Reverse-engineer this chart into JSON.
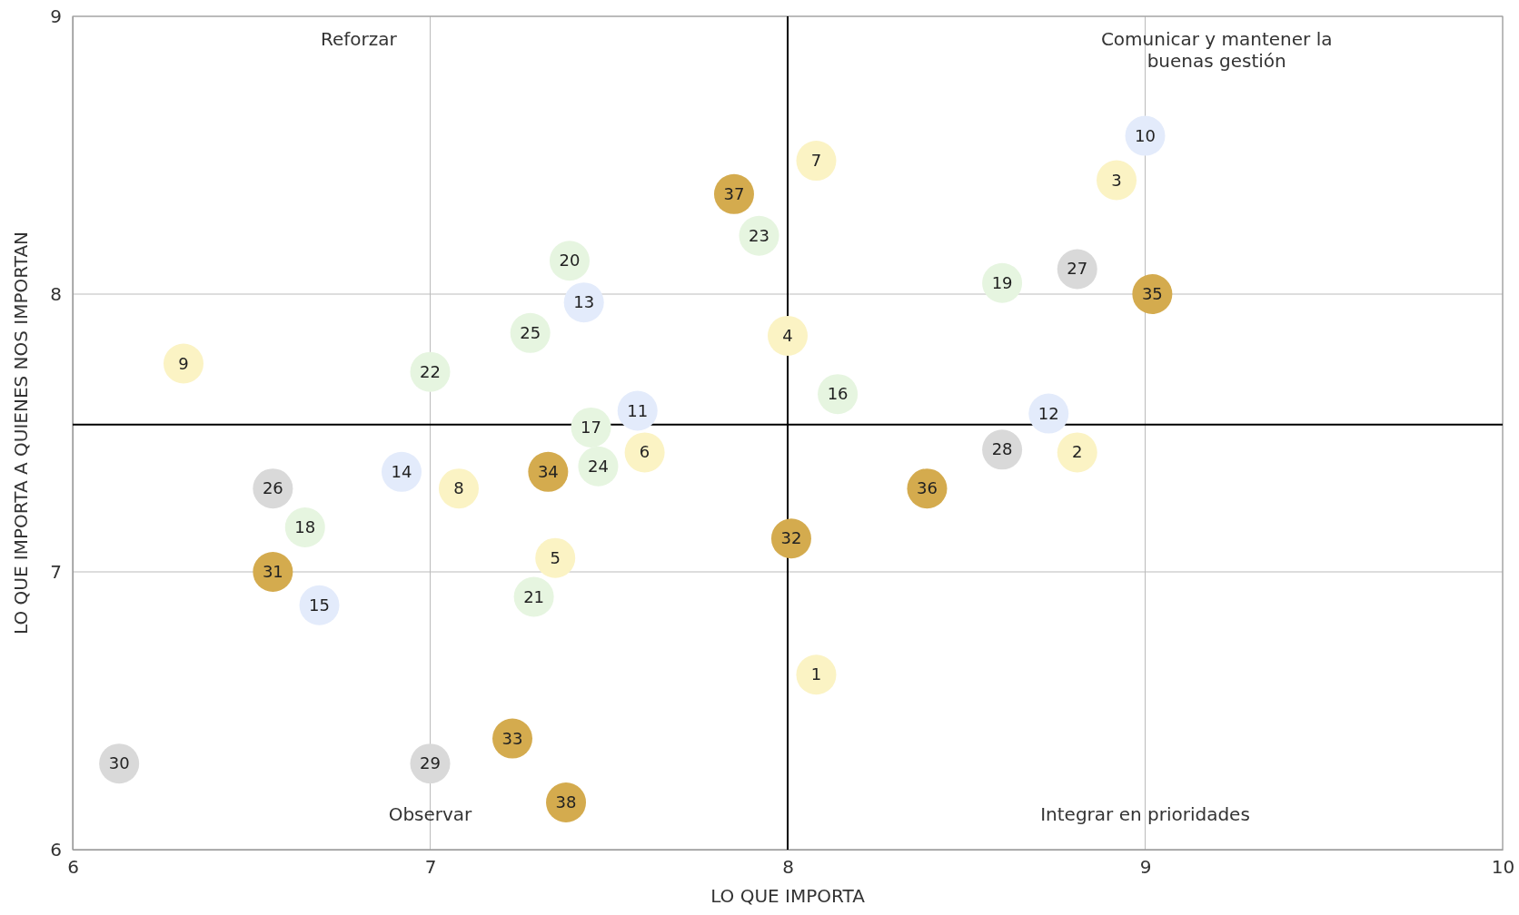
{
  "chart_data": {
    "type": "scatter",
    "xlabel": "LO QUE IMPORTA",
    "ylabel": "LO QUE IMPORTA A QUIENES NOS IMPORTAN",
    "xlim": [
      6,
      10
    ],
    "ylim": [
      6,
      9
    ],
    "xticks": [
      6,
      7,
      8,
      9,
      10
    ],
    "yticks": [
      6,
      7,
      8,
      9
    ],
    "grid": true,
    "marker": "circle",
    "ref_lines": [
      {
        "axis": "x",
        "value": 8,
        "color": "#000000"
      },
      {
        "axis": "y",
        "value": 7.53,
        "color": "#000000"
      }
    ],
    "annotations": [
      "Reforzar",
      "Comunicar y mantener la buenas gestión",
      "Observar",
      "Integrar en prioridades",
      {
        "text": "1",
        "x": 8.08,
        "y": 6.63
      },
      {
        "text": "2",
        "x": 8.81,
        "y": 7.43
      },
      {
        "text": "3",
        "x": 8.92,
        "y": 8.41
      },
      {
        "text": "4",
        "x": 8.0,
        "y": 7.85
      },
      {
        "text": "5",
        "x": 7.35,
        "y": 7.05
      },
      {
        "text": "6",
        "x": 7.6,
        "y": 7.43
      },
      {
        "text": "7",
        "x": 8.08,
        "y": 8.48
      },
      {
        "text": "8",
        "x": 7.08,
        "y": 7.3
      },
      {
        "text": "9",
        "x": 6.31,
        "y": 7.75
      },
      {
        "text": "10",
        "x": 9.0,
        "y": 8.57
      },
      {
        "text": "11",
        "x": 7.58,
        "y": 7.58
      },
      {
        "text": "12",
        "x": 8.73,
        "y": 7.57
      },
      {
        "text": "13",
        "x": 7.43,
        "y": 7.97
      },
      {
        "text": "14",
        "x": 6.92,
        "y": 7.36
      },
      {
        "text": "15",
        "x": 6.69,
        "y": 6.88
      },
      {
        "text": "16",
        "x": 8.14,
        "y": 7.64
      },
      {
        "text": "17",
        "x": 7.45,
        "y": 7.52
      },
      {
        "text": "18",
        "x": 6.65,
        "y": 7.16
      },
      {
        "text": "19",
        "x": 8.6,
        "y": 8.04
      },
      {
        "text": "20",
        "x": 7.39,
        "y": 8.12
      },
      {
        "text": "21",
        "x": 7.29,
        "y": 6.91
      },
      {
        "text": "22",
        "x": 7.0,
        "y": 7.72
      },
      {
        "text": "23",
        "x": 7.92,
        "y": 8.21
      },
      {
        "text": "24",
        "x": 7.47,
        "y": 7.38
      },
      {
        "text": "25",
        "x": 7.28,
        "y": 7.86
      },
      {
        "text": "26",
        "x": 6.56,
        "y": 7.3
      },
      {
        "text": "27",
        "x": 8.81,
        "y": 8.09
      },
      {
        "text": "28",
        "x": 8.6,
        "y": 7.44
      },
      {
        "text": "29",
        "x": 7.0,
        "y": 6.31
      },
      {
        "text": "30",
        "x": 6.13,
        "y": 6.31
      },
      {
        "text": "31",
        "x": 6.56,
        "y": 7.0
      },
      {
        "text": "32",
        "x": 8.01,
        "y": 7.12
      },
      {
        "text": "33",
        "x": 7.23,
        "y": 6.4
      },
      {
        "text": "34",
        "x": 7.33,
        "y": 7.36
      },
      {
        "text": "35",
        "x": 9.02,
        "y": 8.0
      },
      {
        "text": "36",
        "x": 8.39,
        "y": 7.3
      },
      {
        "text": "37",
        "x": 7.85,
        "y": 8.36
      },
      {
        "text": "38",
        "x": 7.38,
        "y": 6.17
      }
    ],
    "series": [
      {
        "color": "#fbf3c4",
        "x": [
          8.08,
          8.81,
          8.92,
          8.0,
          7.35,
          7.6,
          8.08,
          7.08,
          6.31
        ],
        "values": [
          6.63,
          7.43,
          8.41,
          7.85,
          7.05,
          7.43,
          8.48,
          7.3,
          7.75
        ]
      },
      {
        "color": "#e3ebfb",
        "x": [
          9.0,
          7.58,
          8.73,
          7.43,
          6.92,
          6.69
        ],
        "values": [
          8.57,
          7.58,
          7.57,
          7.97,
          7.36,
          6.88
        ]
      },
      {
        "color": "#e6f5e0",
        "x": [
          8.14,
          7.45,
          6.65,
          8.6,
          7.39,
          7.29,
          7.0,
          7.92,
          7.47,
          7.28
        ],
        "values": [
          7.64,
          7.52,
          7.16,
          8.04,
          8.12,
          6.91,
          7.72,
          8.21,
          7.38,
          7.86
        ]
      },
      {
        "color": "#d9d9d9",
        "x": [
          6.56,
          8.81,
          8.6,
          7.0,
          6.13
        ],
        "values": [
          7.3,
          8.09,
          7.44,
          6.31,
          6.31
        ]
      },
      {
        "color": "#d4ab4e",
        "x": [
          6.56,
          8.01,
          7.23,
          7.33,
          9.02,
          8.39,
          7.85,
          7.38
        ],
        "values": [
          7.0,
          7.12,
          6.4,
          7.36,
          8.0,
          7.3,
          8.36,
          6.17
        ]
      }
    ]
  }
}
